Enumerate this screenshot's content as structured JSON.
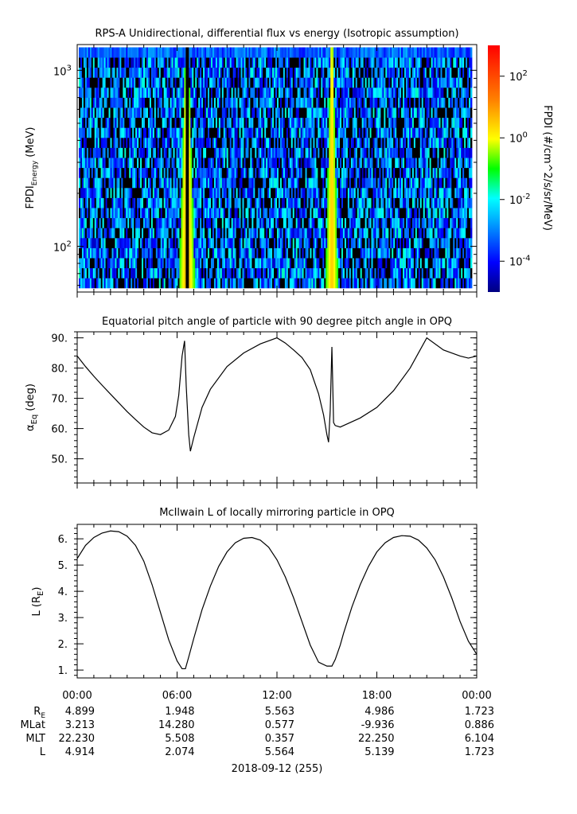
{
  "chart_data": [
    {
      "type": "heatmap",
      "title": "RPS-A Unidirectional, differential flux vs energy (Isotropic assumption)",
      "ylabel_main": "FPDI",
      "ylabel_sub": "Energy",
      "ylabel_unit": "(MeV)",
      "y_scale": "log",
      "ylim": [
        55,
        1400
      ],
      "y_ticks": [
        {
          "value": 100,
          "base": "10",
          "exp": "2"
        },
        {
          "value": 1000,
          "base": "10",
          "exp": "3"
        }
      ],
      "colorbar_label": "FPDI (#/cm^2/s/sr/MeV)",
      "colorbar_scale": "log",
      "colorbar_range": [
        1e-05,
        1000
      ],
      "colorbar_ticks": [
        {
          "value": 0.0001,
          "base": "10",
          "exp": "-4"
        },
        {
          "value": 0.01,
          "base": "10",
          "exp": "-2"
        },
        {
          "value": 1,
          "base": "10",
          "exp": "0"
        },
        {
          "value": 100,
          "base": "10",
          "exp": "2"
        }
      ],
      "features": {
        "background_flux_range": [
          3e-05,
          0.02
        ],
        "enhancements": [
          {
            "time_hours": 6.6,
            "peak_flux": 30
          },
          {
            "time_hours": 15.3,
            "peak_flux": 10
          }
        ]
      }
    },
    {
      "type": "line",
      "title": "Equatorial pitch angle of particle with 90 degree pitch angle in OPQ",
      "ylabel_main": "α",
      "ylabel_sub": "Eq",
      "ylabel_unit": "(deg)",
      "ylim": [
        42,
        92
      ],
      "y_ticks": [
        "50.",
        "60.",
        "70.",
        "80.",
        "90."
      ],
      "x": [
        0,
        0.5,
        1,
        1.5,
        2,
        2.5,
        3,
        3.5,
        4,
        4.5,
        5,
        5.5,
        5.9,
        6.1,
        6.3,
        6.45,
        6.55,
        6.7,
        6.8,
        7,
        7.5,
        8,
        9,
        10,
        11,
        12,
        12.5,
        13,
        13.5,
        14,
        14.5,
        14.8,
        15.0,
        15.1,
        15.2,
        15.3,
        15.35,
        15.4,
        15.5,
        15.8,
        16,
        17,
        18,
        19,
        20,
        20.5,
        21,
        22,
        23,
        23.5,
        24
      ],
      "values": [
        84,
        80.5,
        77.3,
        74.3,
        71.4,
        68.5,
        65.6,
        63,
        60.5,
        58.6,
        58,
        59.5,
        64,
        71,
        84,
        89,
        74,
        58,
        52.5,
        57,
        67,
        73,
        80.5,
        85,
        88,
        90,
        88.3,
        86,
        83.5,
        79.5,
        71.5,
        64.5,
        58,
        55.5,
        66,
        87,
        75,
        62,
        61,
        60.5,
        61,
        63.5,
        67,
        72.5,
        80,
        85,
        90,
        86,
        84,
        83.3,
        84
      ]
    },
    {
      "type": "line",
      "title": "McIlwain L of locally mirroring particle in OPQ",
      "ylabel_main": "L (R",
      "ylabel_sub": "E",
      "ylabel_unit": ")",
      "ylim": [
        0.7,
        6.55
      ],
      "y_ticks": [
        "1.",
        "2.",
        "3.",
        "4.",
        "5.",
        "6."
      ],
      "x": [
        0,
        0.5,
        1,
        1.5,
        2,
        2.5,
        3,
        3.5,
        4,
        4.5,
        5,
        5.5,
        6,
        6.3,
        6.5,
        6.7,
        7,
        7.5,
        8,
        8.5,
        9,
        9.5,
        10,
        10.5,
        11,
        11.5,
        12,
        12.5,
        13,
        13.5,
        14,
        14.5,
        15,
        15.3,
        15.5,
        15.8,
        16,
        16.5,
        17,
        17.5,
        18,
        18.5,
        19,
        19.5,
        20,
        20.5,
        21,
        21.5,
        22,
        22.5,
        23,
        23.5,
        24
      ],
      "values": [
        5.25,
        5.75,
        6.05,
        6.22,
        6.3,
        6.27,
        6.1,
        5.75,
        5.15,
        4.25,
        3.2,
        2.15,
        1.35,
        1.05,
        1.05,
        1.5,
        2.2,
        3.3,
        4.2,
        4.95,
        5.5,
        5.85,
        6.02,
        6.05,
        5.95,
        5.68,
        5.2,
        4.55,
        3.75,
        2.85,
        1.95,
        1.3,
        1.15,
        1.15,
        1.4,
        1.95,
        2.4,
        3.4,
        4.25,
        4.95,
        5.5,
        5.85,
        6.05,
        6.12,
        6.1,
        5.95,
        5.65,
        5.2,
        4.55,
        3.75,
        2.85,
        2.1,
        1.6
      ]
    }
  ],
  "time_axis": {
    "tick_labels": [
      "00:00",
      "06:00",
      "12:00",
      "18:00",
      "00:00"
    ],
    "date_label": "2018-09-12 (255)"
  },
  "ephemeris": {
    "rows": [
      {
        "label": "R",
        "sub": "E",
        "values": [
          "4.899",
          "1.948",
          "5.563",
          "4.986",
          "1.723"
        ]
      },
      {
        "label": "MLat",
        "sub": "",
        "values": [
          "3.213",
          "14.280",
          "0.577",
          "-9.936",
          "0.886"
        ]
      },
      {
        "label": "MLT",
        "sub": "",
        "values": [
          "22.230",
          "5.508",
          "0.357",
          "22.250",
          "6.104"
        ]
      },
      {
        "label": "L",
        "sub": "",
        "values": [
          "4.914",
          "2.074",
          "5.564",
          "5.139",
          "1.723"
        ]
      }
    ]
  }
}
